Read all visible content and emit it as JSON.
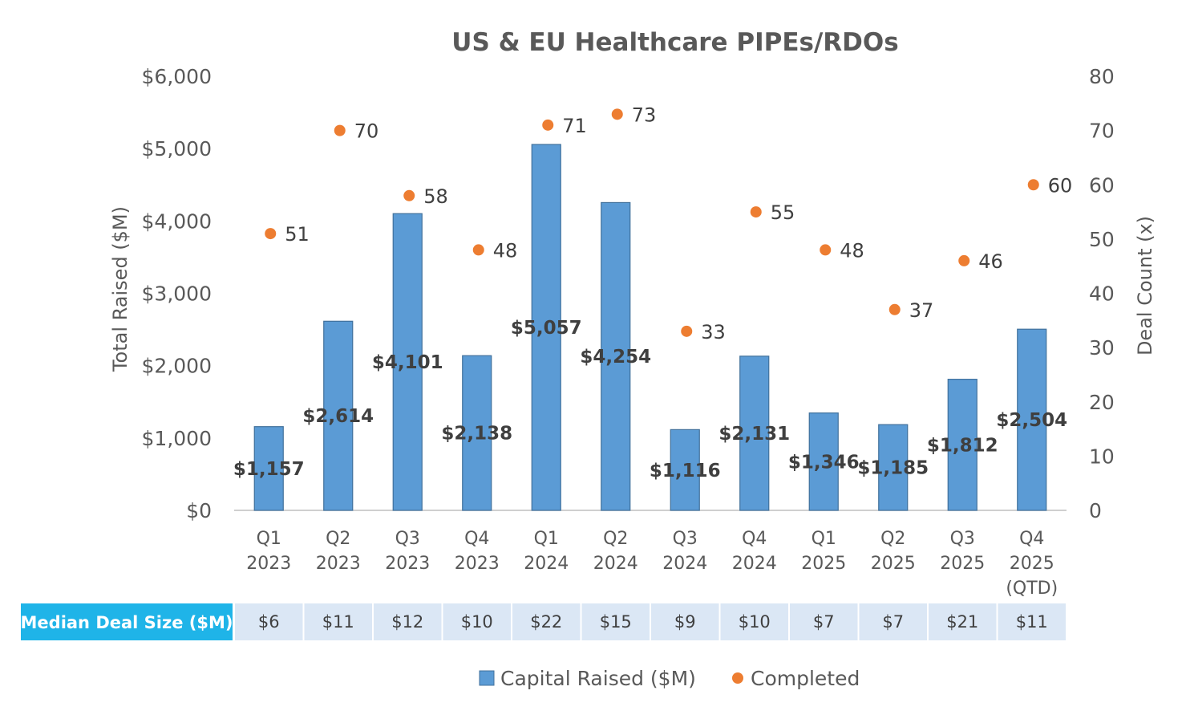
{
  "chart_data": {
    "type": "bar",
    "title": "US & EU Healthcare PIPEs/RDOs",
    "categories": [
      [
        "Q1",
        "2023"
      ],
      [
        "Q2",
        "2023"
      ],
      [
        "Q3",
        "2023"
      ],
      [
        "Q4",
        "2023"
      ],
      [
        "Q1",
        "2024"
      ],
      [
        "Q2",
        "2024"
      ],
      [
        "Q3",
        "2024"
      ],
      [
        "Q4",
        "2024"
      ],
      [
        "Q1",
        "2025"
      ],
      [
        "Q2",
        "2025"
      ],
      [
        "Q3",
        "2025"
      ],
      [
        "Q4",
        "2025",
        "(QTD)"
      ]
    ],
    "series": [
      {
        "name": "Capital Raised ($M)",
        "type": "bar",
        "axis": "left",
        "color": "#5b9bd5",
        "values": [
          1157,
          2614,
          4101,
          2138,
          5057,
          4254,
          1116,
          2131,
          1346,
          1185,
          1812,
          2504
        ],
        "labels": [
          "$1,157",
          "$2,614",
          "$4,101",
          "$2,138",
          "$5,057",
          "$4,254",
          "$1,116",
          "$2,131",
          "$1,346",
          "$1,185",
          "$1,812",
          "$2,504"
        ]
      },
      {
        "name": "Completed",
        "type": "scatter",
        "axis": "right",
        "color": "#ed7d31",
        "values": [
          51,
          70,
          58,
          48,
          71,
          73,
          33,
          55,
          48,
          37,
          46,
          60
        ],
        "labels": [
          "51",
          "70",
          "58",
          "48",
          "71",
          "73",
          "33",
          "55",
          "48",
          "37",
          "46",
          "60"
        ]
      }
    ],
    "y_left": {
      "label": "Total Raised ($M)",
      "range": [
        0,
        6000
      ],
      "ticks": [
        0,
        1000,
        2000,
        3000,
        4000,
        5000,
        6000
      ],
      "tick_labels": [
        "$0",
        "$1,000",
        "$2,000",
        "$3,000",
        "$4,000",
        "$5,000",
        "$6,000"
      ]
    },
    "y_right": {
      "label": "Deal Count (x)",
      "range": [
        0,
        80
      ],
      "ticks": [
        0,
        10,
        20,
        30,
        40,
        50,
        60,
        70,
        80
      ],
      "tick_labels": [
        "0",
        "10",
        "20",
        "30",
        "40",
        "50",
        "60",
        "70",
        "80"
      ]
    },
    "grid": false,
    "legend_position": "bottom",
    "table": {
      "header": "Median Deal Size ($M)",
      "values": [
        "$6",
        "$11",
        "$12",
        "$10",
        "$22",
        "$15",
        "$9",
        "$10",
        "$7",
        "$7",
        "$21",
        "$11"
      ],
      "header_color": "#1fb4e8",
      "cell_color": "#dbe7f5"
    }
  }
}
